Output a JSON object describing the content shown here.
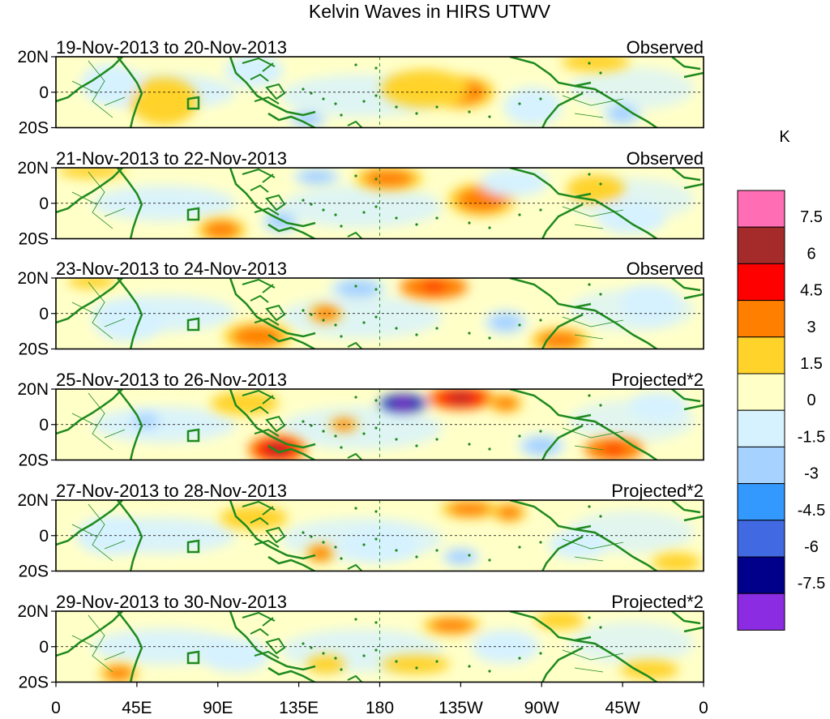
{
  "chart_data": {
    "type": "heatmap",
    "title": "Kelvin Waves in HIRS UTWV",
    "colorbar": {
      "unit": "K",
      "tick_labels": [
        "7.5",
        "6",
        "4.5",
        "3",
        "1.5",
        "0",
        "-1.5",
        "-3",
        "-4.5",
        "-6",
        "-7.5"
      ],
      "colors_top_to_bottom": [
        "#ff6eb4",
        "#a52a2a",
        "#ff0000",
        "#ff7f00",
        "#ffd32a",
        "#ffffc8",
        "#d6f2ff",
        "#a6d2ff",
        "#3399ff",
        "#4169e1",
        "#00008b",
        "#8b2be2"
      ]
    },
    "x_tick_labels": [
      "0",
      "45E",
      "90E",
      "135E",
      "180",
      "135W",
      "90W",
      "45W",
      "0"
    ],
    "y_tick_labels": [
      "20N",
      "0",
      "20S"
    ],
    "xlim_deg_east": [
      0,
      360
    ],
    "ylim_deg": [
      -20,
      20
    ],
    "panels": [
      {
        "date_range": "19-Nov-2013 to 20-Nov-2013",
        "kind": "Observed"
      },
      {
        "date_range": "21-Nov-2013 to 22-Nov-2013",
        "kind": "Observed"
      },
      {
        "date_range": "23-Nov-2013 to 24-Nov-2013",
        "kind": "Observed"
      },
      {
        "date_range": "25-Nov-2013 to 26-Nov-2013",
        "kind": "Projected*2"
      },
      {
        "date_range": "27-Nov-2013 to 28-Nov-2013",
        "kind": "Projected*2"
      },
      {
        "date_range": "29-Nov-2013 to 30-Nov-2013",
        "kind": "Projected*2"
      }
    ],
    "anomaly_blobs_by_panel": [
      [
        {
          "lon": 225,
          "lat": 0,
          "value": 3.5,
          "rx_deg": 14,
          "ry_deg": 7
        },
        {
          "lon": 205,
          "lat": 2,
          "value": 2,
          "rx_deg": 18,
          "ry_deg": 8
        },
        {
          "lon": 60,
          "lat": -5,
          "value": 1.5,
          "rx_deg": 14,
          "ry_deg": 10
        },
        {
          "lon": 300,
          "lat": 17,
          "value": 1.5,
          "rx_deg": 14,
          "ry_deg": 4
        },
        {
          "lon": 110,
          "lat": 12,
          "value": -1.5,
          "rx_deg": 12,
          "ry_deg": 7
        },
        {
          "lon": 140,
          "lat": -15,
          "value": -3,
          "rx_deg": 8,
          "ry_deg": 4
        },
        {
          "lon": 315,
          "lat": -12,
          "value": -3,
          "rx_deg": 8,
          "ry_deg": 5
        },
        {
          "lon": 30,
          "lat": 5,
          "value": -1.5,
          "rx_deg": 12,
          "ry_deg": 8
        },
        {
          "lon": 265,
          "lat": -8,
          "value": -1.5,
          "rx_deg": 12,
          "ry_deg": 8
        }
      ],
      [
        {
          "lon": 185,
          "lat": 14,
          "value": 3.5,
          "rx_deg": 14,
          "ry_deg": 5
        },
        {
          "lon": 237,
          "lat": 2,
          "value": 4,
          "rx_deg": 14,
          "ry_deg": 7
        },
        {
          "lon": 92,
          "lat": -15,
          "value": 3,
          "rx_deg": 10,
          "ry_deg": 5
        },
        {
          "lon": 20,
          "lat": 18,
          "value": 2,
          "rx_deg": 14,
          "ry_deg": 3
        },
        {
          "lon": 145,
          "lat": 15,
          "value": -3,
          "rx_deg": 10,
          "ry_deg": 4
        },
        {
          "lon": 125,
          "lat": -10,
          "value": -3,
          "rx_deg": 8,
          "ry_deg": 5
        },
        {
          "lon": 255,
          "lat": 12,
          "value": -1.5,
          "rx_deg": 14,
          "ry_deg": 6
        },
        {
          "lon": 320,
          "lat": -8,
          "value": -1.5,
          "rx_deg": 14,
          "ry_deg": 7
        },
        {
          "lon": 300,
          "lat": 8,
          "value": 1.5,
          "rx_deg": 12,
          "ry_deg": 6
        }
      ],
      [
        {
          "lon": 210,
          "lat": 15,
          "value": 5,
          "rx_deg": 14,
          "ry_deg": 5
        },
        {
          "lon": 112,
          "lat": -13,
          "value": 4,
          "rx_deg": 14,
          "ry_deg": 6
        },
        {
          "lon": 280,
          "lat": -15,
          "value": 4,
          "rx_deg": 12,
          "ry_deg": 5
        },
        {
          "lon": 150,
          "lat": 0,
          "value": 3,
          "rx_deg": 7,
          "ry_deg": 4
        },
        {
          "lon": 168,
          "lat": 14,
          "value": -3,
          "rx_deg": 12,
          "ry_deg": 5
        },
        {
          "lon": 250,
          "lat": -5,
          "value": -3,
          "rx_deg": 9,
          "ry_deg": 5
        },
        {
          "lon": 40,
          "lat": -5,
          "value": -1.5,
          "rx_deg": 14,
          "ry_deg": 8
        },
        {
          "lon": 330,
          "lat": 5,
          "value": -1.5,
          "rx_deg": 12,
          "ry_deg": 8
        },
        {
          "lon": 20,
          "lat": 18,
          "value": 2,
          "rx_deg": 10,
          "ry_deg": 3
        }
      ],
      [
        {
          "lon": 225,
          "lat": 15,
          "value": 7,
          "rx_deg": 14,
          "ry_deg": 5
        },
        {
          "lon": 123,
          "lat": -14,
          "value": 6,
          "rx_deg": 12,
          "ry_deg": 6
        },
        {
          "lon": 310,
          "lat": -14,
          "value": 5,
          "rx_deg": 12,
          "ry_deg": 5
        },
        {
          "lon": 250,
          "lat": 12,
          "value": 4,
          "rx_deg": 7,
          "ry_deg": 4
        },
        {
          "lon": 193,
          "lat": 12,
          "value": -7,
          "rx_deg": 10,
          "ry_deg": 4
        },
        {
          "lon": 160,
          "lat": 0,
          "value": 3,
          "rx_deg": 6,
          "ry_deg": 3
        },
        {
          "lon": 50,
          "lat": 2,
          "value": -3,
          "rx_deg": 7,
          "ry_deg": 4
        },
        {
          "lon": 270,
          "lat": -12,
          "value": -3,
          "rx_deg": 10,
          "ry_deg": 5
        },
        {
          "lon": 105,
          "lat": 12,
          "value": 2,
          "rx_deg": 14,
          "ry_deg": 5
        },
        {
          "lon": 335,
          "lat": 10,
          "value": -1.5,
          "rx_deg": 12,
          "ry_deg": 6
        }
      ],
      [
        {
          "lon": 230,
          "lat": 15,
          "value": 4,
          "rx_deg": 12,
          "ry_deg": 4
        },
        {
          "lon": 252,
          "lat": 13,
          "value": 3.5,
          "rx_deg": 7,
          "ry_deg": 4
        },
        {
          "lon": 147,
          "lat": -10,
          "value": 3.5,
          "rx_deg": 6,
          "ry_deg": 4
        },
        {
          "lon": 345,
          "lat": -15,
          "value": 2,
          "rx_deg": 10,
          "ry_deg": 4
        },
        {
          "lon": 180,
          "lat": -5,
          "value": -1.5,
          "rx_deg": 16,
          "ry_deg": 7
        },
        {
          "lon": 225,
          "lat": -12,
          "value": -3,
          "rx_deg": 8,
          "ry_deg": 4
        },
        {
          "lon": 30,
          "lat": 0,
          "value": -1.5,
          "rx_deg": 14,
          "ry_deg": 8
        },
        {
          "lon": 110,
          "lat": 10,
          "value": 2,
          "rx_deg": 14,
          "ry_deg": 5
        },
        {
          "lon": 290,
          "lat": -5,
          "value": -1.5,
          "rx_deg": 12,
          "ry_deg": 6
        }
      ],
      [
        {
          "lon": 220,
          "lat": 12,
          "value": 3,
          "rx_deg": 12,
          "ry_deg": 4
        },
        {
          "lon": 200,
          "lat": -10,
          "value": 2,
          "rx_deg": 14,
          "ry_deg": 4
        },
        {
          "lon": 150,
          "lat": -10,
          "value": 2,
          "rx_deg": 8,
          "ry_deg": 4
        },
        {
          "lon": 330,
          "lat": -13,
          "value": 2,
          "rx_deg": 12,
          "ry_deg": 4
        },
        {
          "lon": 35,
          "lat": -15,
          "value": 3,
          "rx_deg": 8,
          "ry_deg": 4
        },
        {
          "lon": 100,
          "lat": -5,
          "value": -1.5,
          "rx_deg": 14,
          "ry_deg": 7
        },
        {
          "lon": 250,
          "lat": 0,
          "value": -1.5,
          "rx_deg": 14,
          "ry_deg": 7
        },
        {
          "lon": 280,
          "lat": 15,
          "value": 1.5,
          "rx_deg": 10,
          "ry_deg": 4
        }
      ]
    ]
  }
}
